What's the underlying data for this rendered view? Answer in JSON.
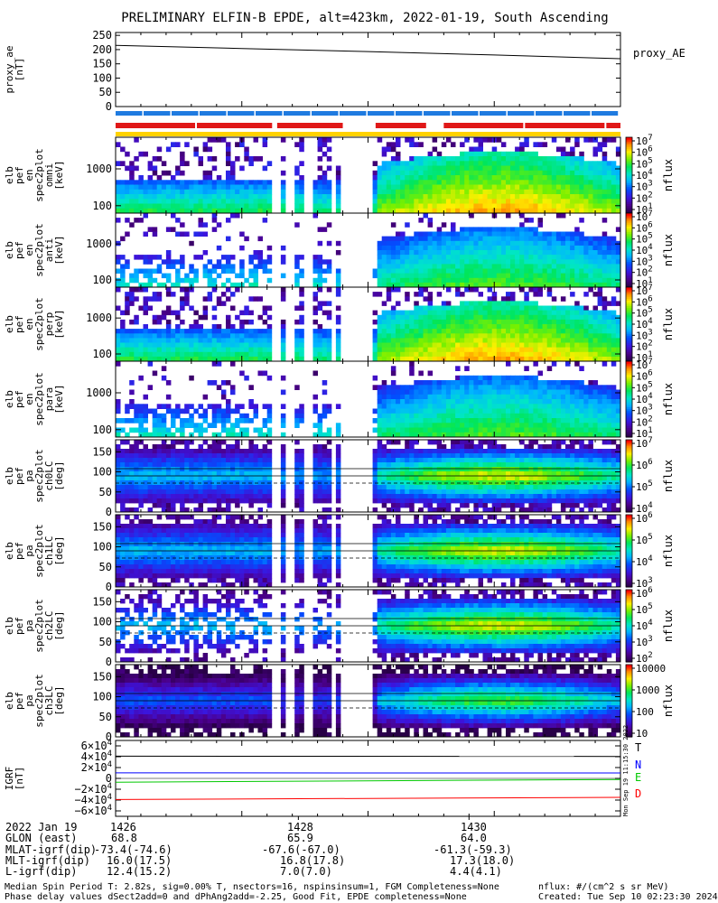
{
  "chart_data": {
    "type": "heatmap",
    "title": "PRELIMINARY ELFIN-B EPDE, alt=423km, 2022-01-19, South Ascending",
    "colors": {
      "bar_blue": "#1f7be0",
      "bar_red": "#e01818",
      "bar_yellow": "#ffd200",
      "comp_T": "#000000",
      "comp_N": "#0000ff",
      "comp_E": "#00c800",
      "comp_D": "#ff0000"
    },
    "panels": [
      {
        "id": "proxy_ae",
        "type": "line",
        "ylabel": [
          "proxy_ae",
          "[nT]"
        ],
        "ylim": [
          0,
          260
        ],
        "yticks": [
          "0",
          "50",
          "100",
          "150",
          "200",
          "250"
        ],
        "legend": "proxy_AE",
        "x": [
          0,
          0.25,
          0.5,
          0.75,
          1.0
        ],
        "values": [
          215,
          204,
          193,
          181,
          168
        ]
      },
      {
        "id": "spin_bars",
        "type": "bars",
        "blue_segments": [
          [
            0,
            0.995
          ]
        ],
        "red_segments": [
          [
            0,
            0.31
          ],
          [
            0.32,
            0.45
          ],
          [
            0.515,
            0.615
          ],
          [
            0.65,
            1.0
          ]
        ],
        "yellow_segments": [
          [
            0,
            1.0
          ]
        ]
      },
      {
        "id": "en_omni",
        "type": "heatmap",
        "kind": "energy",
        "ylabel": [
          "elb",
          "pef",
          "en",
          "spec2plot",
          "omni",
          "[keV]"
        ],
        "yticks": [
          "100",
          "1000"
        ],
        "ylim_keV": [
          63,
          7200
        ],
        "zlabel": "nflux",
        "colorbar_ticks": [
          "10^7",
          "10^6",
          "10^5",
          "10^4",
          "10^3",
          "10^2",
          "10^1"
        ],
        "colorbar_range_log10": [
          1,
          7
        ]
      },
      {
        "id": "en_anti",
        "type": "heatmap",
        "kind": "energy",
        "ylabel": [
          "elb",
          "pef",
          "en",
          "spec2plot",
          "anti",
          "[keV]"
        ],
        "yticks": [
          "100",
          "1000"
        ],
        "ylim_keV": [
          63,
          7200
        ],
        "zlabel": "nflux",
        "colorbar_ticks": [
          "10^7",
          "10^6",
          "10^5",
          "10^4",
          "10^3",
          "10^2",
          "10^1"
        ],
        "colorbar_range_log10": [
          1,
          7
        ]
      },
      {
        "id": "en_perp",
        "type": "heatmap",
        "kind": "energy",
        "ylabel": [
          "elb",
          "pef",
          "en",
          "spec2plot",
          "perp",
          "[keV]"
        ],
        "yticks": [
          "100",
          "1000"
        ],
        "ylim_keV": [
          63,
          7200
        ],
        "zlabel": "nflux",
        "colorbar_ticks": [
          "10^7",
          "10^6",
          "10^5",
          "10^4",
          "10^3",
          "10^2",
          "10^1"
        ],
        "colorbar_range_log10": [
          1,
          7
        ]
      },
      {
        "id": "en_para",
        "type": "heatmap",
        "kind": "energy",
        "ylabel": [
          "elb",
          "pef",
          "en",
          "spec2plot",
          "para",
          "[keV]"
        ],
        "yticks": [
          "100",
          "1000"
        ],
        "ylim_keV": [
          63,
          7200
        ],
        "zlabel": "nflux",
        "colorbar_ticks": [
          "10^7",
          "10^6",
          "10^5",
          "10^4",
          "10^3",
          "10^2",
          "10^1"
        ],
        "colorbar_range_log10": [
          1,
          7
        ]
      },
      {
        "id": "pa_ch0",
        "type": "heatmap",
        "kind": "pitch",
        "ylabel": [
          "elb",
          "pef",
          "pa",
          "spec2plot",
          "ch0LC",
          "[deg]"
        ],
        "yticks": [
          "0",
          "50",
          "100",
          "150"
        ],
        "ylim_deg": [
          0,
          180
        ],
        "zlabel": "nflux",
        "colorbar_ticks": [
          "10^7",
          "10^6",
          "10^5",
          "10^4"
        ],
        "colorbar_range_log10": [
          3.6,
          7
        ]
      },
      {
        "id": "pa_ch1",
        "type": "heatmap",
        "kind": "pitch",
        "ylabel": [
          "elb",
          "pef",
          "pa",
          "spec2plot",
          "ch1LC",
          "[deg]"
        ],
        "yticks": [
          "0",
          "50",
          "100",
          "150"
        ],
        "ylim_deg": [
          0,
          180
        ],
        "zlabel": "nflux",
        "colorbar_ticks": [
          "10^6",
          "10^5",
          "10^4",
          "10^3"
        ],
        "colorbar_range_log10": [
          3,
          6.5
        ]
      },
      {
        "id": "pa_ch2",
        "type": "heatmap",
        "kind": "pitch",
        "ylabel": [
          "elb",
          "pef",
          "pa",
          "spec2plot",
          "ch2LC",
          "[deg]"
        ],
        "yticks": [
          "0",
          "50",
          "100",
          "150"
        ],
        "ylim_deg": [
          0,
          180
        ],
        "zlabel": "nflux",
        "colorbar_ticks": [
          "10^6",
          "10^5",
          "10^4",
          "10^3",
          "10^2"
        ],
        "colorbar_range_log10": [
          2,
          6.5
        ]
      },
      {
        "id": "pa_ch3",
        "type": "heatmap",
        "kind": "pitch",
        "ylabel": [
          "elb",
          "pef",
          "pa",
          "spec2plot",
          "ch3LC",
          "[deg]"
        ],
        "yticks": [
          "0",
          "50",
          "100",
          "150"
        ],
        "ylim_deg": [
          0,
          180
        ],
        "zlabel": "nflux",
        "colorbar_ticks": [
          "10000",
          "1000",
          "100",
          "10"
        ],
        "colorbar_range_log10": [
          1,
          4.3
        ]
      },
      {
        "id": "igrf",
        "type": "line",
        "ylabel": [
          "IGRF",
          "[nT]"
        ],
        "ylim": [
          -70000,
          70000
        ],
        "yticks": [
          "6×10^4",
          "4×10^4",
          "2×10^4",
          "0",
          "−2×10^4",
          "−4×10^4",
          "−6×10^4"
        ],
        "legend": [
          "T",
          "N",
          "E",
          "D"
        ],
        "series": [
          {
            "name": "T",
            "x": [
              0,
              1
            ],
            "values": [
              41000,
              40500
            ]
          },
          {
            "name": "N",
            "x": [
              0,
              1
            ],
            "values": [
              10200,
              10000
            ]
          },
          {
            "name": "E",
            "x": [
              0,
              1
            ],
            "values": [
              -7000,
              -2000
            ]
          },
          {
            "name": "D",
            "x": [
              0,
              1
            ],
            "values": [
              -39000,
              -35000
            ]
          }
        ]
      }
    ],
    "gaps": [
      [
        0.305,
        0.325
      ],
      [
        0.335,
        0.35
      ],
      [
        0.37,
        0.395
      ],
      [
        0.425,
        0.44
      ],
      [
        0.45,
        0.48
      ],
      [
        0.485,
        0.505
      ]
    ],
    "vertical_stamp": "Mon Sep 19 11:15:30 2022",
    "xticks": [
      "1426",
      "1428",
      "1430"
    ],
    "xtick_positions": [
      0.024,
      0.362,
      0.7
    ]
  },
  "footer": {
    "rows": [
      {
        "label": "2022 Jan 19",
        "values": [
          "1426",
          "1428",
          "1430"
        ]
      },
      {
        "label": "GLON (east)",
        "values": [
          "68.8",
          "65.9",
          "64.0"
        ]
      },
      {
        "label": "MLAT-igrf(dip)",
        "values": [
          "-73.4(-74.6)",
          "-67.6(-67.0)",
          "-61.3(-59.3)"
        ]
      },
      {
        "label": "MLT-igrf(dip)",
        "values": [
          "16.0(17.5)",
          "16.8(17.8)",
          "17.3(18.0)"
        ]
      },
      {
        "label": "L-igrf(dip)",
        "values": [
          "12.4(15.2)",
          "7.0(7.0)",
          "4.4(4.1)"
        ]
      }
    ],
    "note1": "Median Spin Period T: 2.82s, sig=0.00% T, nsectors=16, nspinsinsum=1, FGM Completeness=None",
    "note2": "Phase delay values dSect2add=0 and dPhAng2add=-2.25, Good Fit, EPDE completeness=None",
    "units": "nflux: #/(cm^2 s sr MeV)",
    "created": "Created: Tue Sep 10 02:23:30 2024"
  }
}
